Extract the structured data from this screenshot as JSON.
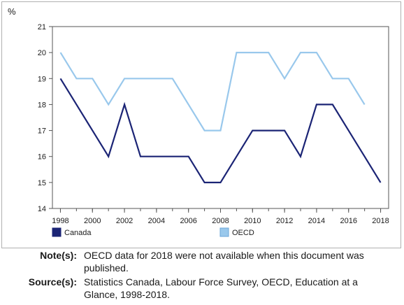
{
  "chart_data": {
    "type": "line",
    "title": "",
    "xlabel": "",
    "ylabel": "%",
    "ylim": [
      14,
      21
    ],
    "yticks": [
      14,
      15,
      16,
      17,
      18,
      19,
      20,
      21
    ],
    "xlim": [
      1997.5,
      2018.5
    ],
    "xticks": [
      1998,
      2000,
      2002,
      2004,
      2006,
      2008,
      2010,
      2012,
      2014,
      2016,
      2018
    ],
    "legend_position": "bottom",
    "grid": false,
    "x": [
      1998,
      1999,
      2000,
      2001,
      2002,
      2003,
      2004,
      2005,
      2006,
      2007,
      2008,
      2009,
      2010,
      2011,
      2012,
      2013,
      2014,
      2015,
      2016,
      2017,
      2018
    ],
    "series": [
      {
        "name": "Canada",
        "color": "#1b2475",
        "values": [
          19,
          18,
          17,
          16,
          18,
          16,
          16,
          16,
          16,
          15,
          15,
          16,
          17,
          17,
          17,
          16,
          18,
          18,
          17,
          16,
          15
        ]
      },
      {
        "name": "OECD",
        "color": "#99c8ec",
        "values": [
          20,
          19,
          19,
          18,
          19,
          19,
          19,
          19,
          18,
          17,
          17,
          20,
          20,
          20,
          19,
          20,
          20,
          19,
          19,
          18,
          null
        ]
      }
    ]
  },
  "notes": {
    "note_label": "Note(s):",
    "note_text": "OECD data for 2018 were not available when this document was published.",
    "source_label": "Source(s):",
    "source_text": "Statistics Canada, Labour Force Survey, OECD, Education at a Glance, 1998-2018."
  }
}
